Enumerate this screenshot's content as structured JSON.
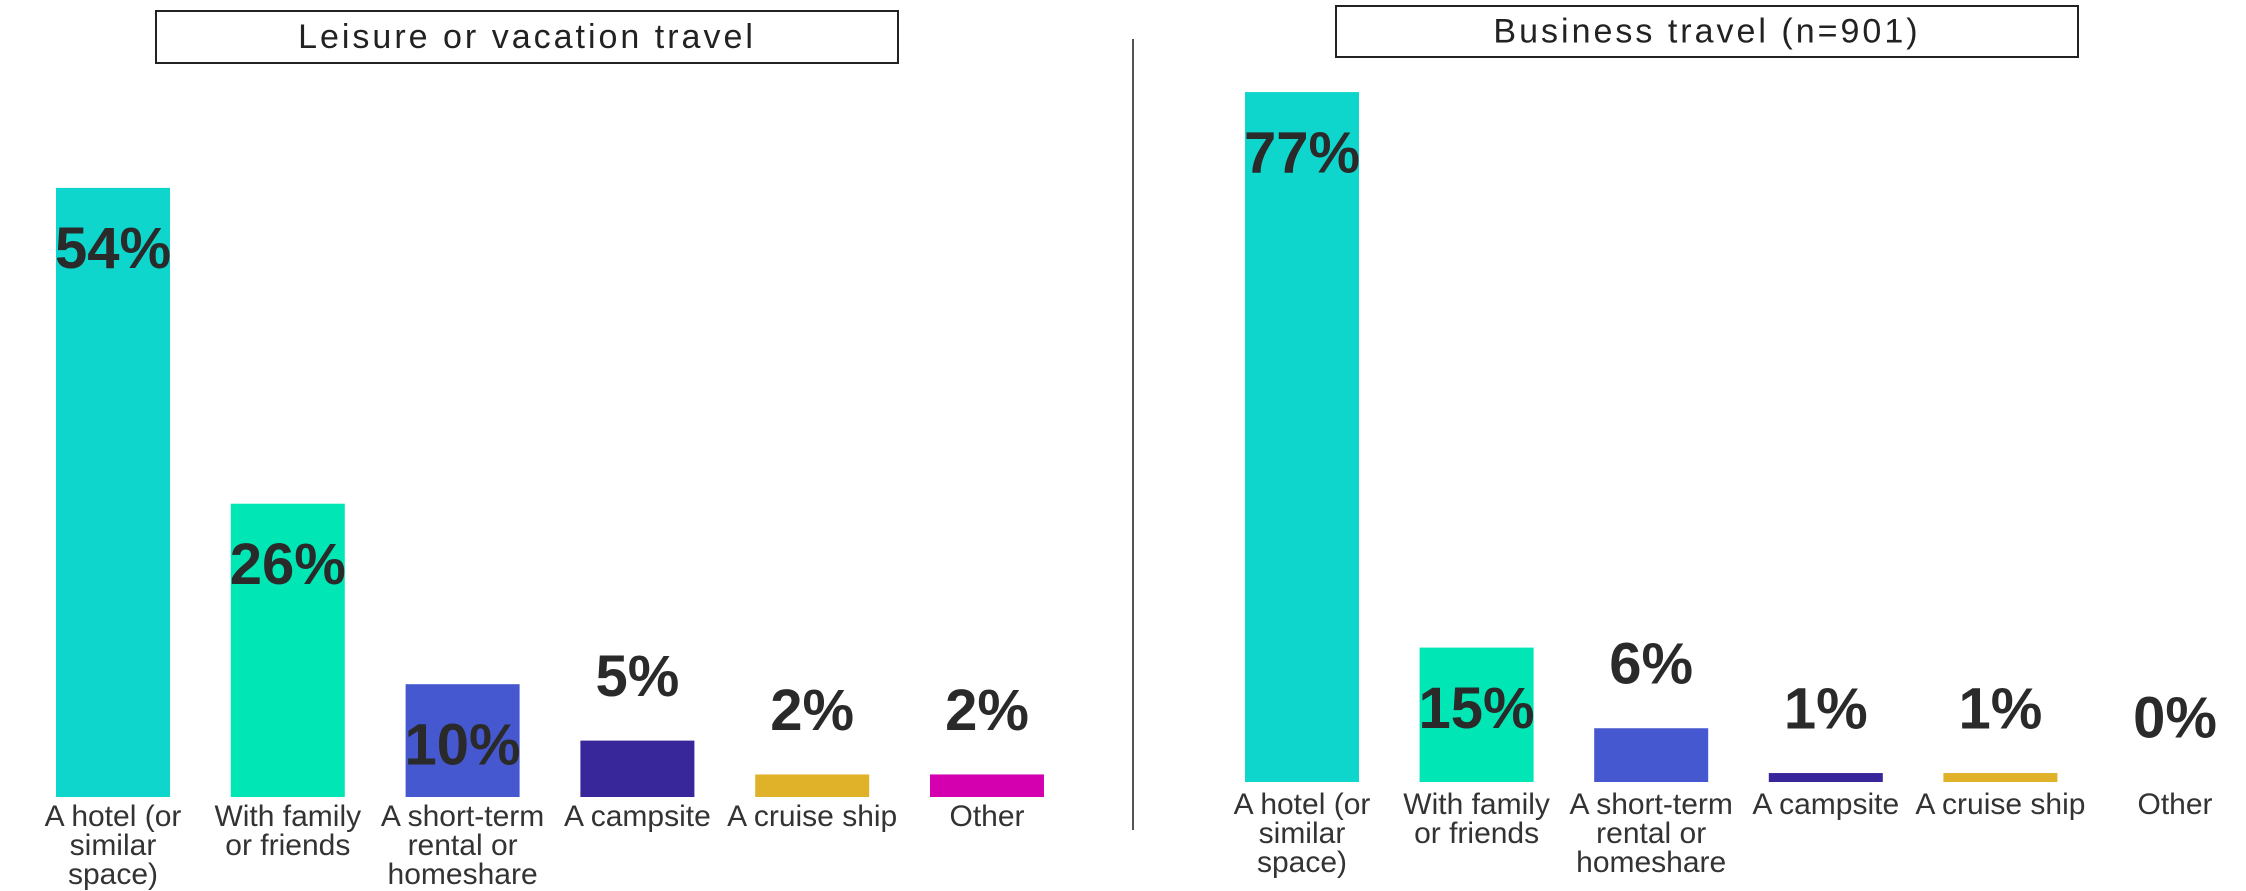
{
  "chart_data": [
    {
      "type": "bar",
      "title": "Leisure or vacation travel",
      "categories": [
        "A hotel (or similar space)",
        "With family or friends",
        "A short-term rental or homeshare",
        "A campsite",
        "A cruise ship",
        "Other"
      ],
      "values": [
        54,
        26,
        10,
        5,
        2,
        2
      ],
      "value_labels": [
        "54%",
        "26%",
        "10%",
        "5%",
        "2%",
        "2%"
      ],
      "colors": [
        "#0fd6cc",
        "#00e6b4",
        "#4658d0",
        "#38279b",
        "#e0b22a",
        "#d400b0"
      ]
    },
    {
      "type": "bar",
      "title": "Business travel (n=901)",
      "categories": [
        "A hotel (or similar space)",
        "With family or friends",
        "A short-term rental or homeshare",
        "A campsite",
        "A cruise ship",
        "Other"
      ],
      "values": [
        77,
        15,
        6,
        1,
        1,
        0
      ],
      "value_labels": [
        "77%",
        "15%",
        "6%",
        "1%",
        "1%",
        "0%"
      ],
      "colors": [
        "#0fd6cc",
        "#00e6b4",
        "#4658d0",
        "#38279b",
        "#e0b22a",
        "#d400b0"
      ]
    }
  ]
}
